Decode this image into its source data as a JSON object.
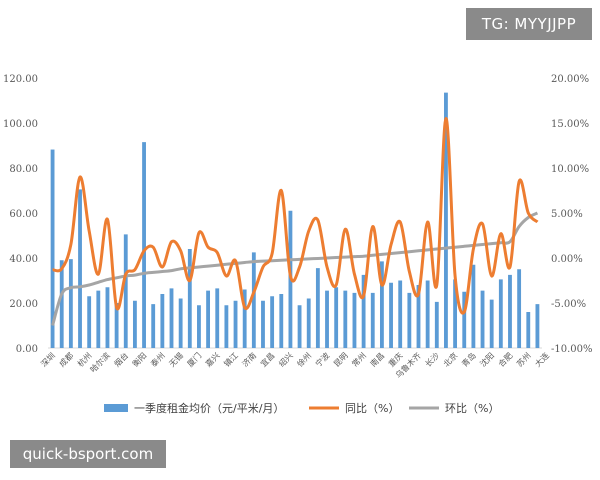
{
  "watermarks": {
    "top_right": "TG: MYYJJPP",
    "bottom_left": "quick-bsport.com"
  },
  "colors": {
    "bar": "#5B9BD5",
    "yoy": "#ED7D31",
    "qoq": "#A5A5A5",
    "axis": "#595959"
  },
  "chart_data": {
    "type": "bar",
    "title": "",
    "xlabel": "",
    "ylabel": "",
    "ylim": [
      0,
      120
    ],
    "y_ticks": [
      "0.00",
      "20.00",
      "40.00",
      "60.00",
      "80.00",
      "100.00",
      "120.00"
    ],
    "y2lim": [
      -10,
      20
    ],
    "y2_ticks": [
      "-10.00%",
      "-5.00%",
      "0.00%",
      "5.00%",
      "10.00%",
      "15.00%",
      "20.00%"
    ],
    "grid": false,
    "legend_position": "bottom",
    "category_labels_shown": [
      "深圳",
      "成都",
      "杭州",
      "哈尔滨",
      "烟台",
      "衡阳",
      "泰州",
      "无锡",
      "厦门",
      "嘉兴",
      "镇江",
      "济南",
      "宜昌",
      "绍兴",
      "徐州",
      "宁波",
      "昆明",
      "常州",
      "南昌",
      "重庆",
      "乌鲁木齐",
      "长沙",
      "北京",
      "青岛",
      "沈阳",
      "合肥",
      "苏州",
      "大连"
    ],
    "series": [
      {
        "name": "一季度租金均价（元/平米/月）",
        "type": "bar",
        "values": [
          88.2,
          39,
          39.5,
          70.5,
          23,
          25.5,
          27,
          20,
          50.5,
          21,
          91.5,
          19.5,
          24,
          26.5,
          22,
          44,
          19,
          25.5,
          26.5,
          19,
          21,
          26,
          42.5,
          21,
          23,
          24,
          61,
          19,
          22,
          35.5,
          25.5,
          27,
          25.5,
          24.5,
          32.5,
          24.5,
          38.5,
          29,
          30,
          24.5,
          28,
          30,
          20.5,
          113.5,
          30.5,
          25,
          37,
          25.5,
          21.5,
          30.5,
          32.5,
          35,
          16,
          19.5
        ]
      },
      {
        "name": "同比（%）",
        "type": "line",
        "axis": "right",
        "values": [
          -1.3,
          -1.2,
          1.5,
          9,
          3,
          -1.8,
          4.3,
          -5.5,
          -1.8,
          -1.3,
          0.8,
          1.2,
          -1,
          1.8,
          0.8,
          -2.5,
          2.8,
          1.2,
          0.6,
          -2,
          -0.3,
          -5.5,
          -3.8,
          -1,
          0.5,
          7.5,
          -2,
          -1,
          3,
          4.2,
          -1,
          -3,
          3.2,
          -1.8,
          -4.2,
          3.5,
          -3,
          1.5,
          4,
          -1.5,
          -4,
          4,
          -3,
          15.5,
          -2,
          -6,
          1,
          3.8,
          -2,
          2.7,
          -1,
          8.5,
          5,
          4
        ]
      },
      {
        "name": "环比（%）",
        "type": "line",
        "axis": "right",
        "values": [
          -7.5,
          -4,
          -3.3,
          -3.2,
          -3,
          -2.7,
          -2.4,
          -2.2,
          -2,
          -1.9,
          -1.7,
          -1.6,
          -1.5,
          -1.4,
          -1.2,
          -1.1,
          -1,
          -0.9,
          -0.8,
          -0.7,
          -0.6,
          -0.5,
          -0.4,
          -0.35,
          -0.3,
          -0.25,
          -0.2,
          -0.15,
          -0.1,
          -0.05,
          0,
          0.05,
          0.1,
          0.15,
          0.2,
          0.3,
          0.4,
          0.5,
          0.6,
          0.7,
          0.8,
          0.9,
          1,
          1.1,
          1.2,
          1.3,
          1.4,
          1.5,
          1.6,
          1.7,
          1.8,
          3.5,
          4.5,
          5
        ]
      }
    ]
  }
}
